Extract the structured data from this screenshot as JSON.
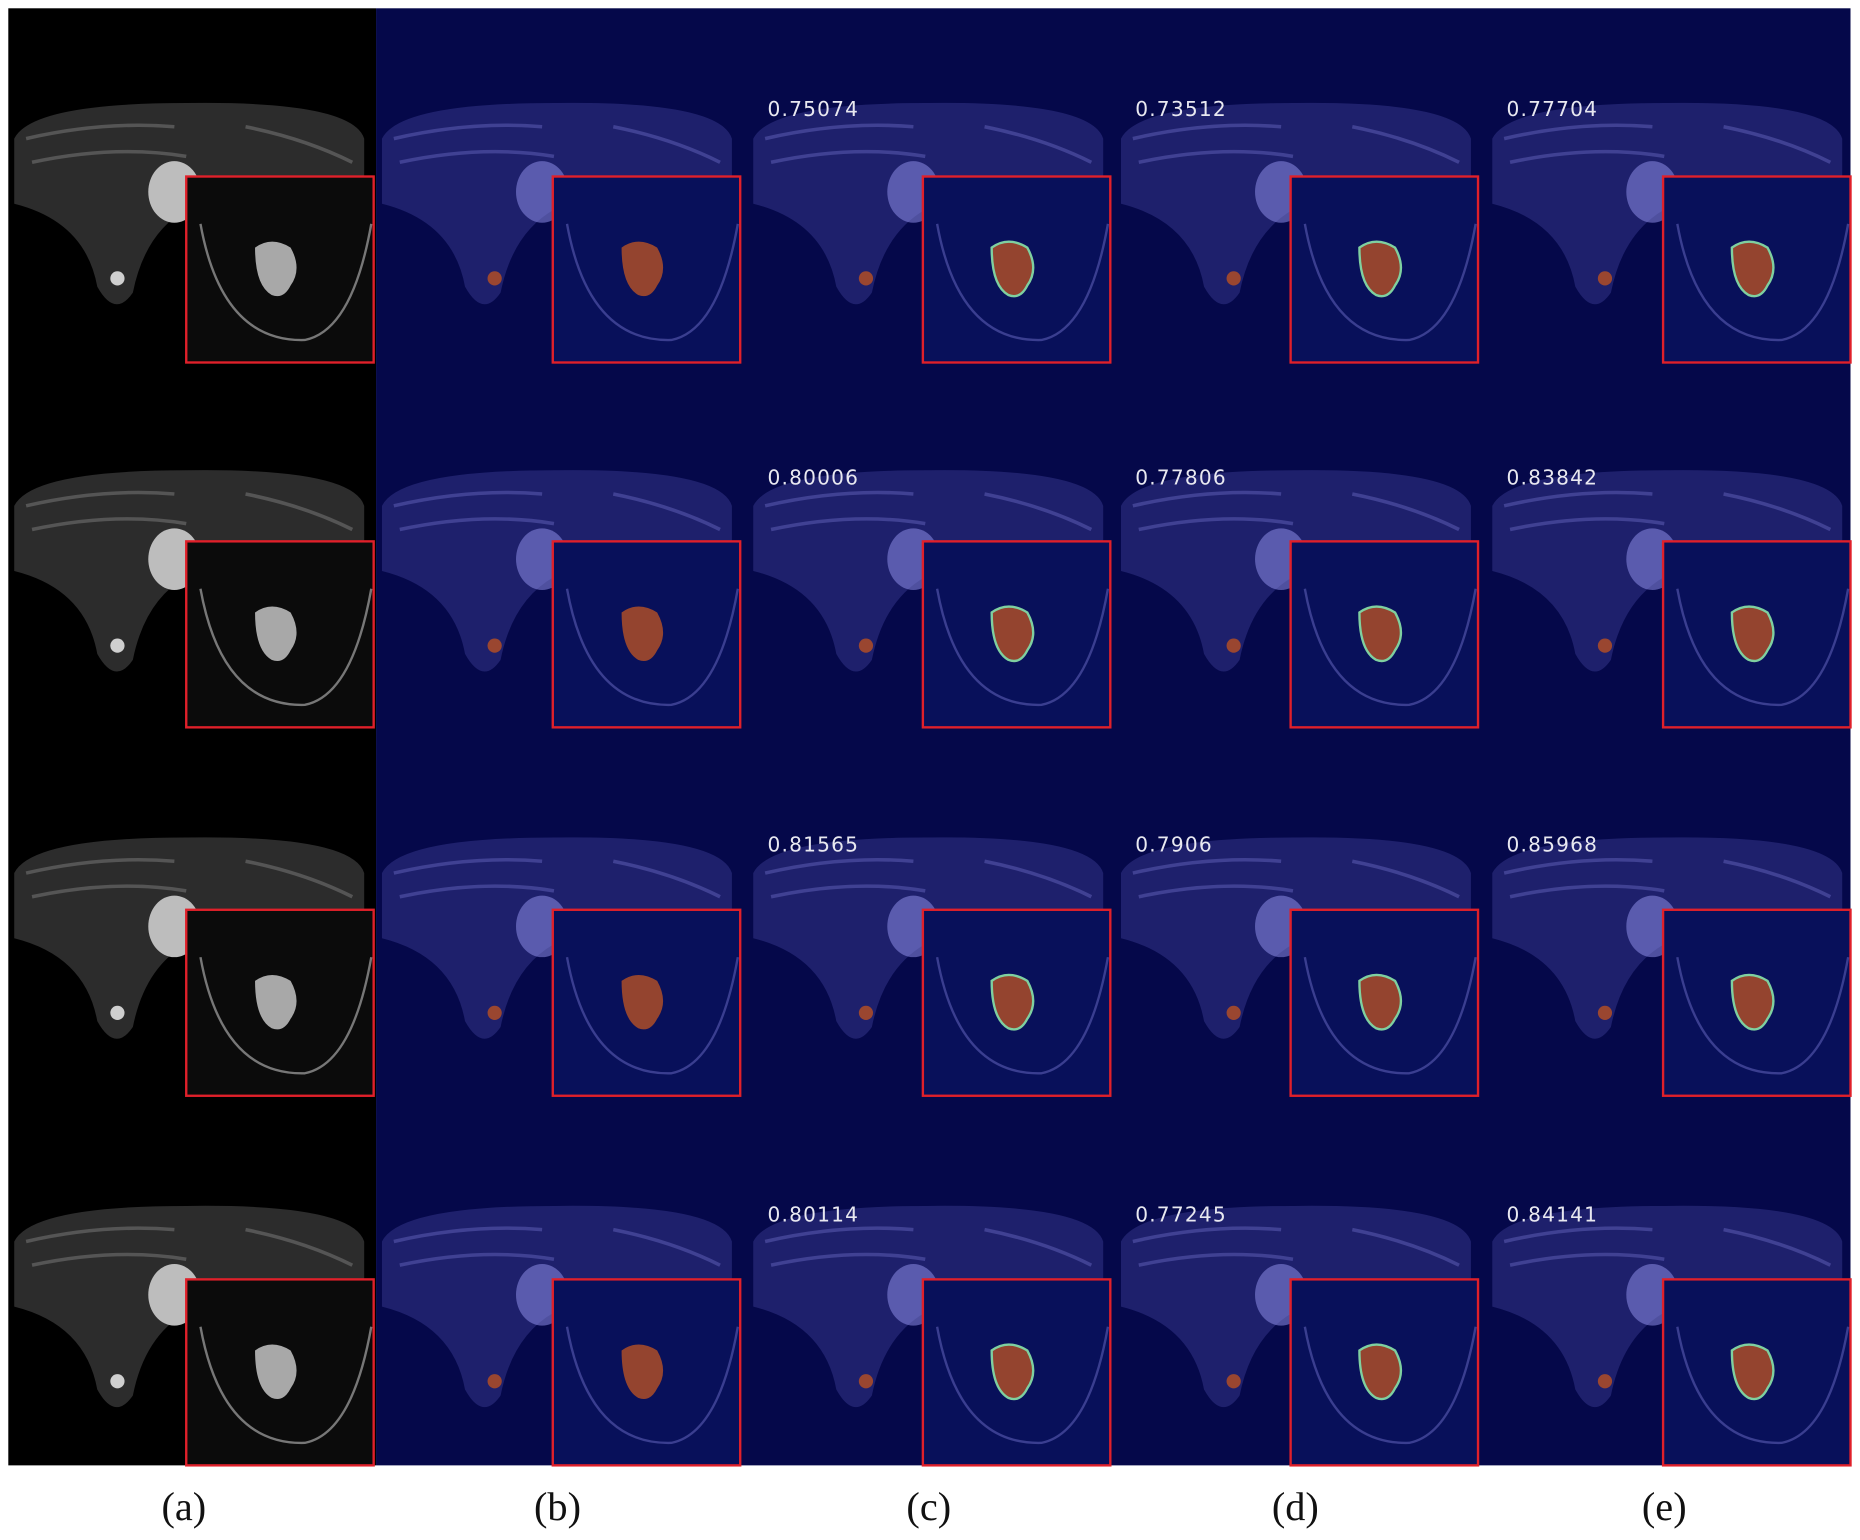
{
  "columns": [
    {
      "label": "(a)"
    },
    {
      "label": "(b)"
    },
    {
      "label": "(c)"
    },
    {
      "label": "(d)"
    },
    {
      "label": "(e)"
    }
  ],
  "scores": [
    [
      0.75074,
      0.73512,
      0.77704
    ],
    [
      0.80006,
      0.77806,
      0.83842
    ],
    [
      0.81565,
      0.7906,
      0.85968
    ],
    [
      0.80114,
      0.77245,
      0.84141
    ]
  ]
}
